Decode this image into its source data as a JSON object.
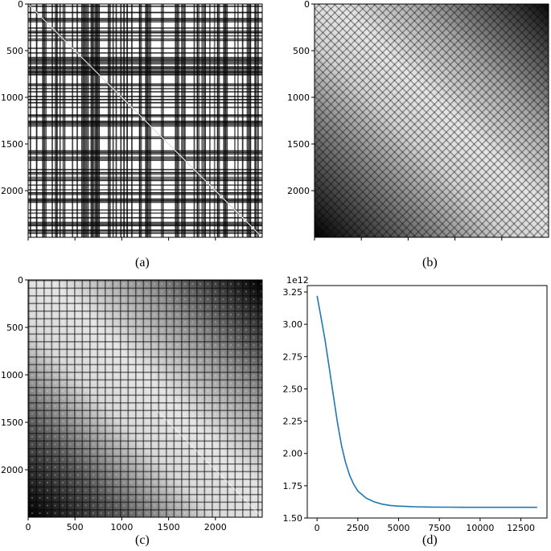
{
  "chart_data": [
    {
      "type": "heatmap",
      "caption": "(a)",
      "colormap": "gray",
      "pattern": "random-binary-with-diagonal",
      "xlim": [
        0,
        2500
      ],
      "ylim": [
        2500,
        0
      ],
      "xticks": [
        0,
        500,
        1000,
        1500,
        2000
      ],
      "yticks": [
        0,
        500,
        1000,
        1500,
        2000
      ]
    },
    {
      "type": "heatmap",
      "caption": "(b)",
      "colormap": "gray",
      "pattern": "smooth-diagonal-gradient-with-lattice",
      "xlim": [
        0,
        2500
      ],
      "ylim": [
        2500,
        0
      ],
      "xticks": [
        0,
        500,
        1000,
        1500,
        2000
      ],
      "yticks": [
        0,
        500,
        1000,
        1500,
        2000
      ]
    },
    {
      "type": "heatmap",
      "caption": "(c)",
      "colormap": "gray",
      "pattern": "block-structured-diagonal-gradient",
      "xlim": [
        0,
        2500
      ],
      "ylim": [
        2500,
        0
      ],
      "xticks": [
        0,
        500,
        1000,
        1500,
        2000
      ],
      "yticks": [
        0,
        500,
        1000,
        1500,
        2000
      ]
    },
    {
      "type": "line",
      "caption": "(d)",
      "y_offset_label": "1e12",
      "x": [
        0,
        250,
        500,
        750,
        1000,
        1250,
        1500,
        1750,
        2000,
        2250,
        2500,
        3000,
        3500,
        4000,
        4500,
        5000,
        6000,
        7000,
        8000,
        9000,
        10000,
        11000,
        12000,
        13000,
        13500
      ],
      "y": [
        3.22,
        3.05,
        2.87,
        2.66,
        2.45,
        2.24,
        2.06,
        1.93,
        1.83,
        1.76,
        1.71,
        1.655,
        1.625,
        1.607,
        1.597,
        1.592,
        1.587,
        1.585,
        1.584,
        1.583,
        1.583,
        1.583,
        1.583,
        1.583,
        1.583
      ],
      "xlim": [
        -600,
        14100
      ],
      "ylim": [
        1.5,
        3.3
      ],
      "xticks": [
        0,
        2500,
        5000,
        7500,
        10000,
        12500
      ],
      "yticks": [
        1.5,
        1.75,
        2.0,
        2.25,
        2.5,
        2.75,
        3.0,
        3.25
      ],
      "color": "#1f77b4"
    }
  ],
  "tick_labels": {
    "heat": [
      "0",
      "500",
      "1000",
      "1500",
      "2000"
    ],
    "d_x": [
      "0",
      "2500",
      "5000",
      "7500",
      "10000",
      "12500"
    ],
    "d_y": [
      "1.50",
      "1.75",
      "2.00",
      "2.25",
      "2.50",
      "2.75",
      "3.00",
      "3.25"
    ]
  }
}
